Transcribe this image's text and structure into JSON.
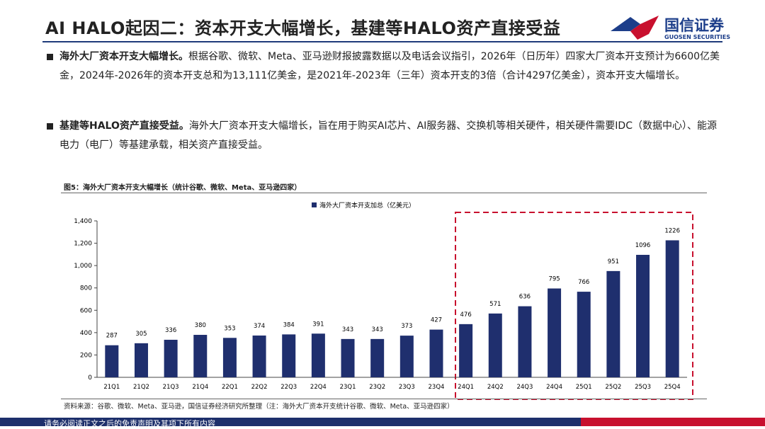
{
  "header": {
    "title": "AI HALO起因二：资本开支大幅增长，基建等HALO资产直接受益",
    "logo_cn": "国信证券",
    "logo_en": "GUOSEN SECURITIES"
  },
  "bullets": [
    {
      "lead": "海外大厂资本开支大幅增长。",
      "text": "根据谷歌、微软、Meta、亚马逊财报披露数据以及电话会议指引，2026年（日历年）四家大厂资本开支预计为6600亿美金，2024年-2026年的资本开支总和为13,111亿美金，是2021年-2023年（三年）资本开支的3倍（合计4297亿美金），资本开支大幅增长。"
    },
    {
      "lead": "基建等HALO资产直接受益。",
      "text": "海外大厂资本开支大幅增长，旨在用于购买AI芯片、AI服务器、交换机等相关硬件，相关硬件需要IDC（数据中心）、能源电力（电厂）等基建承载，相关资产直接受益。"
    }
  ],
  "figure": {
    "caption": "图5：海外大厂资本开支大幅增长（统计谷歌、微软、Meta、亚马逊四家）",
    "source": "资料来源：谷歌、微软、Meta、亚马逊，国信证券经济研究所整理（注：海外大厂资本开支统计谷歌、微软、Meta、亚马逊四家）"
  },
  "chart_data": {
    "type": "bar",
    "categories": [
      "21Q1",
      "21Q2",
      "21Q3",
      "21Q4",
      "22Q1",
      "22Q2",
      "22Q3",
      "22Q4",
      "23Q1",
      "23Q2",
      "23Q3",
      "23Q4",
      "24Q1",
      "24Q2",
      "24Q3",
      "24Q4",
      "25Q1",
      "25Q2",
      "25Q3",
      "25Q4"
    ],
    "series": [
      {
        "name": "海外大厂资本开支加总（亿美元）",
        "color": "#1f2f6e",
        "values": [
          287,
          305,
          336,
          380,
          353,
          374,
          384,
          391,
          343,
          343,
          373,
          427,
          476,
          571,
          636,
          795,
          766,
          951,
          1096,
          1226
        ]
      }
    ],
    "ylim": [
      0,
      1400
    ],
    "yticks": [
      0,
      200,
      400,
      600,
      800,
      {
        "value": 1000,
        "label": "1,000"
      },
      {
        "value": 1200,
        "label": "1,200"
      },
      {
        "value": 1400,
        "label": "1,400"
      }
    ],
    "grid": false,
    "legend": "top"
  },
  "footer": {
    "disclaimer": "请务必阅读正文之后的免责声明及其项下所有内容"
  }
}
